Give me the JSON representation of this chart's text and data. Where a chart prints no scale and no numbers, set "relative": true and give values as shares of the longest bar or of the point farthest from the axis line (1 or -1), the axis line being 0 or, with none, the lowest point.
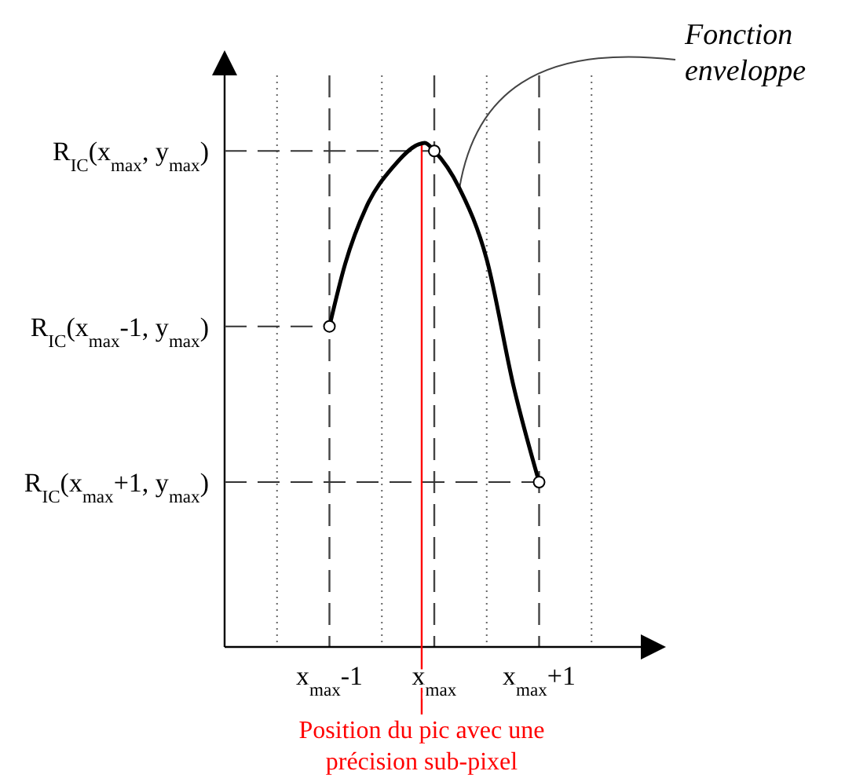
{
  "chart_data": {
    "type": "line",
    "relative": true,
    "xlim": [
      -2,
      2
    ],
    "xticks": [
      {
        "value": -1.5,
        "label": null
      },
      {
        "value": -1,
        "label": "x$_{max}$-1"
      },
      {
        "value": -0.5,
        "label": null
      },
      {
        "value": 0,
        "label": "x$_{max}$"
      },
      {
        "value": 0.5,
        "label": null
      },
      {
        "value": 1,
        "label": "x$_{max}$+1"
      },
      {
        "value": 1.5,
        "label": null
      }
    ],
    "grid": "x",
    "series": [
      {
        "color": "#000000",
        "marker": "none",
        "x": [
          -1,
          -0.85,
          -0.65,
          -0.39,
          -0.15,
          -0.09,
          0,
          0.24,
          0.5,
          0.76,
          1
        ],
        "values": [
          0.636,
          0.76,
          0.872,
          0.953,
          0.997,
          1,
          0.984,
          0.91,
          0.769,
          0.514,
          0.327
        ]
      },
      {
        "type": "scatter",
        "color": "#000000",
        "marker": "circle",
        "x": [
          -1,
          0,
          1
        ],
        "values": [
          0.636,
          0.984,
          0.327
        ]
      }
    ],
    "ref_lines": [
      {
        "axis": "x",
        "value": -0.12,
        "label": "Position du pic avec une précision sub-pixel",
        "color": "#ff0000"
      }
    ],
    "annotations": [
      {
        "text": "R$_{IC}$(x$_{max}$, y$_{max}$)",
        "x": 0,
        "y": 0.984
      },
      {
        "text": "R$_{IC}$(x$_{max}$-1, y$_{max}$)",
        "x": -1,
        "y": 0.636
      },
      {
        "text": "R$_{IC}$(x$_{max}$+1, y$_{max}$)",
        "x": 1,
        "y": 0.327
      },
      {
        "text": "Fonction enveloppe",
        "x": 0.24,
        "y": 0.91
      }
    ]
  }
}
